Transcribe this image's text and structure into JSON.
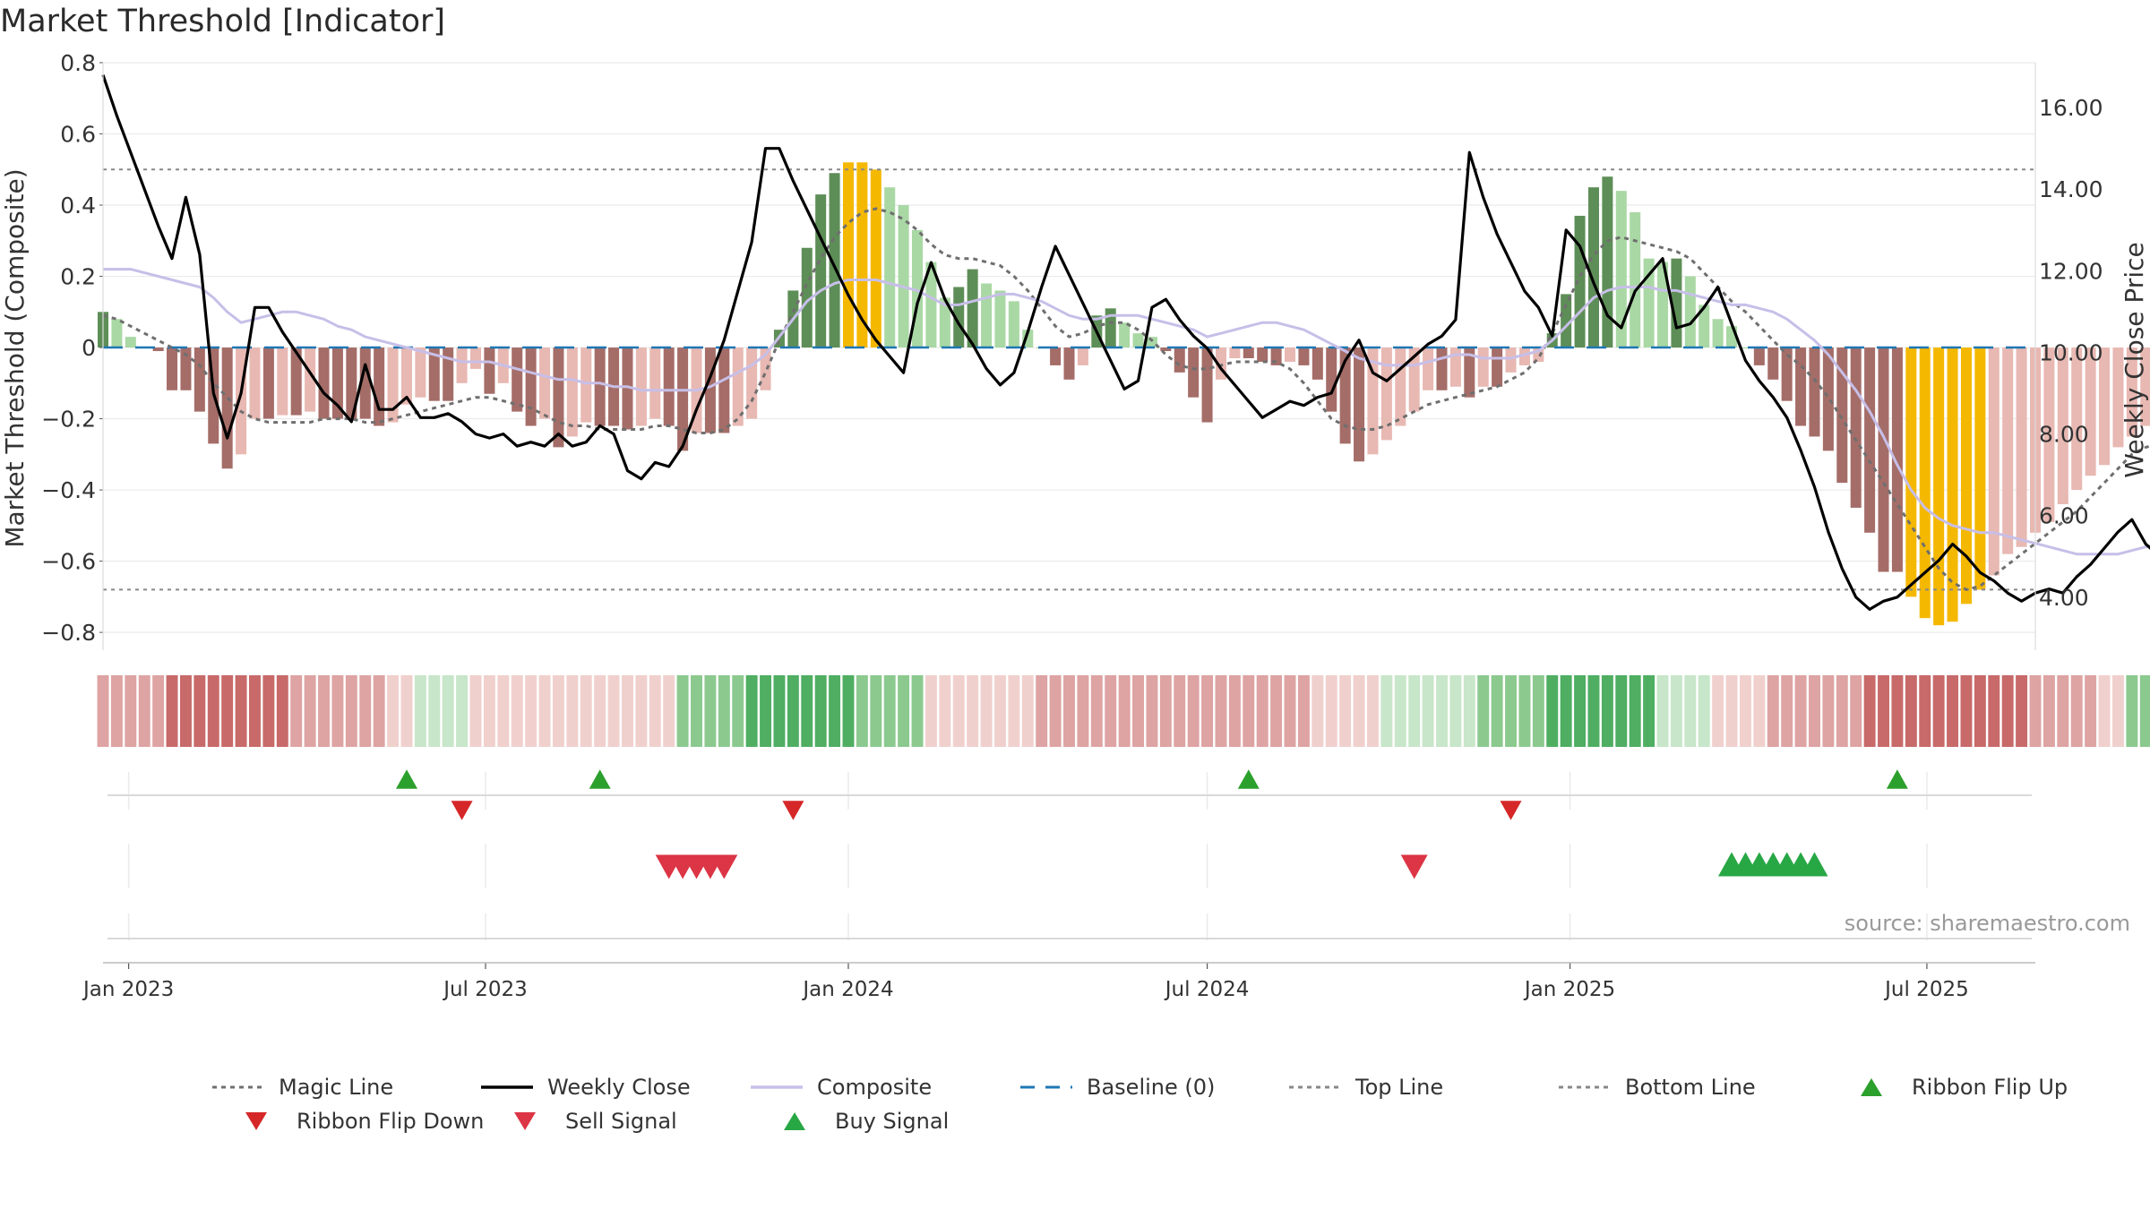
{
  "chart": {
    "title": "Market Threshold [Indicator]",
    "source_note": "source: sharemaestro.com"
  },
  "chart_data": {
    "type": "bar",
    "title": "Market Threshold [Indicator]",
    "ylabel": "Market Threshold (Composite)",
    "y2label": "Weekly Close Price",
    "ylim": [
      -0.85,
      0.8
    ],
    "y2lim": [
      2.7,
      17.1
    ],
    "y_ticks": [
      0.8,
      0.6,
      0.4,
      0.2,
      0,
      -0.2,
      -0.4,
      -0.6,
      -0.8
    ],
    "y_tick_labels": [
      "0.8",
      "0.6",
      "0.4",
      "0.2",
      "0",
      "−0.2",
      "−0.4",
      "−0.6",
      "−0.8"
    ],
    "y2_ticks": [
      4,
      6,
      8,
      10,
      12,
      14,
      16
    ],
    "y2_tick_labels": [
      "4.00",
      "6.00",
      "8.00",
      "10.00",
      "12.00",
      "14.00",
      "16.00"
    ],
    "x_range": [
      "2022-12-19",
      "2025-08-25"
    ],
    "x_ticks": [
      "2023-01-01",
      "2023-07-01",
      "2024-01-01",
      "2024-07-01",
      "2025-01-01",
      "2025-07-01"
    ],
    "x_tick_labels": [
      "Jan 2023",
      "Jul 2023",
      "Jan 2024",
      "Jul 2024",
      "Jan 2025",
      "Jul 2025"
    ],
    "top_line": 0.5,
    "bottom_line": -0.68,
    "baseline": 0,
    "grid": true,
    "legend_position": "bottom",
    "start_date": "2022-12-19",
    "bar_colors": {
      "pos_light": "#a9d8a4",
      "pos_dark": "#5e8e57",
      "neg_light": "#e8b8b2",
      "neg_dark": "#a56d68",
      "extreme": "#f5b800"
    },
    "ribbon_colors": {
      "pos_strong": "#4fae62",
      "pos_mid": "#8cc98f",
      "pos_weak": "#c8e6c9",
      "neg_strong": "#c86a6a",
      "neg_mid": "#dea3a3",
      "neg_weak": "#f0d0cd"
    },
    "composite_bars": [
      0.1,
      0.08,
      0.03,
      0.0,
      -0.01,
      -0.12,
      -0.12,
      -0.18,
      -0.27,
      -0.34,
      -0.3,
      -0.2,
      -0.2,
      -0.19,
      -0.19,
      -0.18,
      -0.2,
      -0.2,
      -0.2,
      -0.2,
      -0.22,
      -0.21,
      -0.16,
      -0.14,
      -0.15,
      -0.15,
      -0.1,
      -0.06,
      -0.13,
      -0.1,
      -0.18,
      -0.22,
      -0.2,
      -0.28,
      -0.25,
      -0.21,
      -0.22,
      -0.22,
      -0.23,
      -0.22,
      -0.2,
      -0.22,
      -0.29,
      -0.24,
      -0.24,
      -0.24,
      -0.22,
      -0.2,
      -0.12,
      0.05,
      0.16,
      0.28,
      0.43,
      0.49,
      0.52,
      0.52,
      0.5,
      0.45,
      0.4,
      0.33,
      0.24,
      0.14,
      0.17,
      0.22,
      0.18,
      0.16,
      0.13,
      0.05,
      0.0,
      -0.05,
      -0.09,
      -0.05,
      0.09,
      0.11,
      0.07,
      0.04,
      0.03,
      -0.01,
      -0.07,
      -0.14,
      -0.21,
      -0.09,
      -0.03,
      -0.03,
      -0.04,
      -0.05,
      -0.04,
      -0.05,
      -0.09,
      -0.18,
      -0.27,
      -0.32,
      -0.3,
      -0.26,
      -0.22,
      -0.18,
      -0.12,
      -0.12,
      -0.11,
      -0.14,
      -0.11,
      -0.11,
      -0.07,
      -0.05,
      -0.04,
      0.04,
      0.15,
      0.37,
      0.45,
      0.48,
      0.44,
      0.38,
      0.25,
      0.24,
      0.25,
      0.2,
      0.12,
      0.08,
      0.06,
      0.0,
      -0.05,
      -0.09,
      -0.15,
      -0.22,
      -0.25,
      -0.29,
      -0.38,
      -0.45,
      -0.52,
      -0.63,
      -0.63,
      -0.7,
      -0.76,
      -0.78,
      -0.77,
      -0.72,
      -0.68,
      -0.64,
      -0.58,
      -0.56,
      -0.52,
      -0.49,
      -0.44,
      -0.4,
      -0.36,
      -0.33,
      -0.28,
      -0.25,
      -0.22,
      -0.25,
      -0.26,
      -0.27,
      -0.26,
      -0.25,
      -0.24,
      -0.23,
      -0.24
    ],
    "series": [
      {
        "name": "Magic Line",
        "color": "#6f6f6f",
        "style": "dotted",
        "values": [
          0.09,
          0.08,
          0.06,
          0.04,
          0.02,
          0.0,
          -0.02,
          -0.05,
          -0.1,
          -0.14,
          -0.18,
          -0.2,
          -0.21,
          -0.21,
          -0.21,
          -0.21,
          -0.2,
          -0.2,
          -0.2,
          -0.21,
          -0.21,
          -0.2,
          -0.19,
          -0.18,
          -0.17,
          -0.16,
          -0.15,
          -0.14,
          -0.14,
          -0.15,
          -0.16,
          -0.17,
          -0.19,
          -0.21,
          -0.22,
          -0.22,
          -0.23,
          -0.23,
          -0.23,
          -0.23,
          -0.22,
          -0.22,
          -0.23,
          -0.24,
          -0.24,
          -0.23,
          -0.2,
          -0.15,
          -0.07,
          0.02,
          0.1,
          0.18,
          0.25,
          0.31,
          0.35,
          0.38,
          0.39,
          0.38,
          0.36,
          0.33,
          0.29,
          0.26,
          0.25,
          0.25,
          0.24,
          0.23,
          0.2,
          0.16,
          0.11,
          0.06,
          0.03,
          0.04,
          0.06,
          0.07,
          0.07,
          0.05,
          0.02,
          -0.02,
          -0.05,
          -0.06,
          -0.06,
          -0.05,
          -0.04,
          -0.04,
          -0.04,
          -0.04,
          -0.06,
          -0.1,
          -0.15,
          -0.2,
          -0.22,
          -0.23,
          -0.23,
          -0.22,
          -0.2,
          -0.18,
          -0.16,
          -0.15,
          -0.14,
          -0.13,
          -0.12,
          -0.11,
          -0.09,
          -0.07,
          -0.03,
          0.04,
          0.12,
          0.2,
          0.26,
          0.3,
          0.31,
          0.3,
          0.29,
          0.28,
          0.27,
          0.25,
          0.21,
          0.17,
          0.13,
          0.1,
          0.06,
          0.02,
          -0.02,
          -0.05,
          -0.09,
          -0.14,
          -0.2,
          -0.26,
          -0.32,
          -0.38,
          -0.44,
          -0.5,
          -0.56,
          -0.62,
          -0.66,
          -0.68,
          -0.67,
          -0.64,
          -0.61,
          -0.58,
          -0.55,
          -0.52,
          -0.49,
          -0.46,
          -0.42,
          -0.38,
          -0.34,
          -0.3,
          -0.28,
          -0.27,
          -0.27,
          -0.26,
          -0.26,
          -0.25,
          -0.25,
          -0.24
        ]
      },
      {
        "name": "Composite",
        "color": "#c7bfe8",
        "style": "solid",
        "values": [
          0.22,
          0.22,
          0.22,
          0.21,
          0.2,
          0.19,
          0.18,
          0.17,
          0.14,
          0.1,
          0.07,
          0.08,
          0.09,
          0.1,
          0.1,
          0.09,
          0.08,
          0.06,
          0.05,
          0.03,
          0.02,
          0.01,
          0.0,
          -0.01,
          -0.02,
          -0.03,
          -0.04,
          -0.04,
          -0.04,
          -0.05,
          -0.06,
          -0.07,
          -0.08,
          -0.09,
          -0.09,
          -0.1,
          -0.1,
          -0.11,
          -0.11,
          -0.12,
          -0.12,
          -0.12,
          -0.12,
          -0.12,
          -0.11,
          -0.09,
          -0.07,
          -0.05,
          -0.02,
          0.03,
          0.08,
          0.13,
          0.16,
          0.18,
          0.19,
          0.19,
          0.19,
          0.18,
          0.17,
          0.16,
          0.14,
          0.12,
          0.12,
          0.13,
          0.14,
          0.15,
          0.15,
          0.14,
          0.13,
          0.11,
          0.09,
          0.08,
          0.08,
          0.09,
          0.09,
          0.09,
          0.08,
          0.07,
          0.06,
          0.05,
          0.03,
          0.04,
          0.05,
          0.06,
          0.07,
          0.07,
          0.06,
          0.05,
          0.03,
          0.01,
          -0.01,
          -0.03,
          -0.04,
          -0.05,
          -0.05,
          -0.05,
          -0.04,
          -0.03,
          -0.02,
          -0.02,
          -0.03,
          -0.03,
          -0.03,
          -0.02,
          -0.01,
          0.02,
          0.06,
          0.1,
          0.14,
          0.16,
          0.17,
          0.17,
          0.17,
          0.16,
          0.16,
          0.15,
          0.14,
          0.13,
          0.12,
          0.12,
          0.11,
          0.1,
          0.08,
          0.05,
          0.02,
          -0.02,
          -0.07,
          -0.12,
          -0.18,
          -0.25,
          -0.33,
          -0.4,
          -0.45,
          -0.48,
          -0.5,
          -0.51,
          -0.52,
          -0.52,
          -0.53,
          -0.54,
          -0.55,
          -0.56,
          -0.57,
          -0.58,
          -0.58,
          -0.58,
          -0.58,
          -0.57,
          -0.56,
          -0.55,
          -0.55,
          -0.55,
          -0.55,
          -0.55,
          -0.55,
          -0.55,
          -0.56
        ]
      },
      {
        "name": "Weekly Close",
        "color": "#000000",
        "style": "solid",
        "axis": "right",
        "values": [
          16.8,
          15.8,
          14.9,
          14.0,
          13.1,
          12.3,
          13.8,
          12.4,
          9.0,
          7.9,
          9.0,
          11.1,
          11.1,
          10.5,
          10.0,
          9.5,
          9.0,
          8.7,
          8.3,
          9.7,
          8.6,
          8.6,
          8.9,
          8.4,
          8.4,
          8.5,
          8.3,
          8.0,
          7.9,
          8.0,
          7.7,
          7.8,
          7.7,
          8.0,
          7.7,
          7.8,
          8.2,
          8.0,
          7.1,
          6.9,
          7.3,
          7.2,
          7.7,
          8.6,
          9.4,
          10.3,
          11.5,
          12.7,
          15.0,
          15.0,
          14.2,
          13.5,
          12.8,
          12.1,
          11.4,
          10.8,
          10.3,
          9.9,
          9.5,
          11.2,
          12.2,
          11.3,
          10.7,
          10.2,
          9.6,
          9.2,
          9.5,
          10.5,
          11.6,
          12.6,
          11.9,
          11.2,
          10.5,
          9.8,
          9.1,
          9.3,
          11.1,
          11.3,
          10.8,
          10.4,
          10.1,
          9.6,
          9.2,
          8.8,
          8.4,
          8.6,
          8.8,
          8.7,
          8.9,
          9.0,
          9.8,
          10.3,
          9.5,
          9.3,
          9.6,
          9.9,
          10.2,
          10.4,
          10.8,
          14.9,
          13.8,
          12.9,
          12.2,
          11.5,
          11.1,
          10.4,
          13.0,
          12.6,
          11.7,
          10.9,
          10.6,
          11.5,
          11.9,
          12.3,
          10.6,
          10.7,
          11.1,
          11.6,
          10.7,
          9.8,
          9.3,
          8.9,
          8.4,
          7.6,
          6.7,
          5.6,
          4.7,
          4.0,
          3.7,
          3.9,
          4.0,
          4.3,
          4.6,
          4.9,
          5.3,
          5.0,
          4.6,
          4.4,
          4.1,
          3.9,
          4.1,
          4.2,
          4.1,
          4.5,
          4.8,
          5.2,
          5.6,
          5.9,
          5.3,
          5.0,
          5.3,
          5.4,
          5.2,
          5.1,
          5.2,
          5.1
        ]
      },
      {
        "name": "Baseline (0)",
        "color": "#1f77b4",
        "style": "dashed"
      },
      {
        "name": "Top Line",
        "color": "#888888",
        "style": "dotted"
      },
      {
        "name": "Bottom Line",
        "color": "#888888",
        "style": "dotted"
      },
      {
        "name": "Ribbon Flip Up",
        "color": "#2ca02c",
        "marker": "triangle-up"
      },
      {
        "name": "Ribbon Flip Down",
        "color": "#d62728",
        "marker": "triangle-down"
      },
      {
        "name": "Sell Signal",
        "color": "#dc3545",
        "marker": "triangle-down"
      },
      {
        "name": "Buy Signal",
        "color": "#28a745",
        "marker": "triangle-up"
      }
    ],
    "ribbon": [
      -2,
      -2,
      -2,
      -2,
      -2,
      -3,
      -3,
      -3,
      -3,
      -3,
      -3,
      -3,
      -3,
      -3,
      -2,
      -2,
      -2,
      -2,
      -2,
      -2,
      -2,
      -1,
      -1,
      1,
      1,
      1,
      1,
      -1,
      -1,
      -1,
      -1,
      -1,
      -1,
      -1,
      -1,
      -1,
      -1,
      -1,
      -1,
      -1,
      -1,
      -1,
      2,
      2,
      2,
      2,
      2,
      3,
      3,
      3,
      3,
      3,
      3,
      3,
      3,
      2,
      2,
      2,
      2,
      2,
      -1,
      -1,
      -1,
      -1,
      -1,
      -1,
      -1,
      -1,
      -2,
      -2,
      -2,
      -2,
      -2,
      -2,
      -2,
      -2,
      -2,
      -2,
      -2,
      -2,
      -2,
      -2,
      -2,
      -2,
      -2,
      -2,
      -2,
      -2,
      -1,
      -1,
      -1,
      -1,
      -1,
      1,
      1,
      1,
      1,
      1,
      1,
      1,
      2,
      2,
      2,
      2,
      2,
      3,
      3,
      3,
      3,
      3,
      3,
      3,
      3,
      1,
      1,
      1,
      1,
      -1,
      -1,
      -1,
      -1,
      -2,
      -2,
      -2,
      -2,
      -2,
      -2,
      -2,
      -3,
      -3,
      -3,
      -3,
      -3,
      -3,
      -3,
      -3,
      -3,
      -3,
      -3,
      -3,
      -2,
      -2,
      -2,
      -2,
      -2,
      -1,
      -1,
      2,
      2,
      2,
      2,
      2,
      2,
      2,
      2,
      2,
      2,
      2,
      2,
      2
    ],
    "ribbon_flip_up_dates": [
      "2023-05-22",
      "2023-08-28",
      "2024-07-22",
      "2025-06-16"
    ],
    "ribbon_flip_down_dates": [
      "2023-06-19",
      "2023-12-04",
      "2024-12-02"
    ],
    "sell_signal_dates": [
      "2023-10-02",
      "2023-10-09",
      "2023-10-16",
      "2023-10-23",
      "2023-10-30",
      "2024-10-14"
    ],
    "buy_signal_dates": [
      "2025-03-24",
      "2025-03-31",
      "2025-04-07",
      "2025-04-14",
      "2025-04-21",
      "2025-04-28",
      "2025-05-05"
    ]
  },
  "legend": {
    "items": [
      {
        "label": "Magic Line",
        "kind": "dotted",
        "color": "#6f6f6f"
      },
      {
        "label": "Weekly Close",
        "kind": "solid",
        "color": "#000000"
      },
      {
        "label": "Composite",
        "kind": "solid",
        "color": "#c7bfe8"
      },
      {
        "label": "Baseline (0)",
        "kind": "dashed",
        "color": "#1f77b4"
      },
      {
        "label": "Top Line",
        "kind": "dotted",
        "color": "#888888"
      },
      {
        "label": "Bottom Line",
        "kind": "dotted",
        "color": "#888888"
      },
      {
        "label": "Ribbon Flip Up",
        "kind": "tri-up",
        "color": "#2ca02c"
      },
      {
        "label": "Ribbon Flip Down",
        "kind": "tri-down",
        "color": "#d62728"
      },
      {
        "label": "Sell Signal",
        "kind": "tri-down",
        "color": "#dc3545"
      },
      {
        "label": "Buy Signal",
        "kind": "tri-up",
        "color": "#28a745"
      }
    ]
  }
}
